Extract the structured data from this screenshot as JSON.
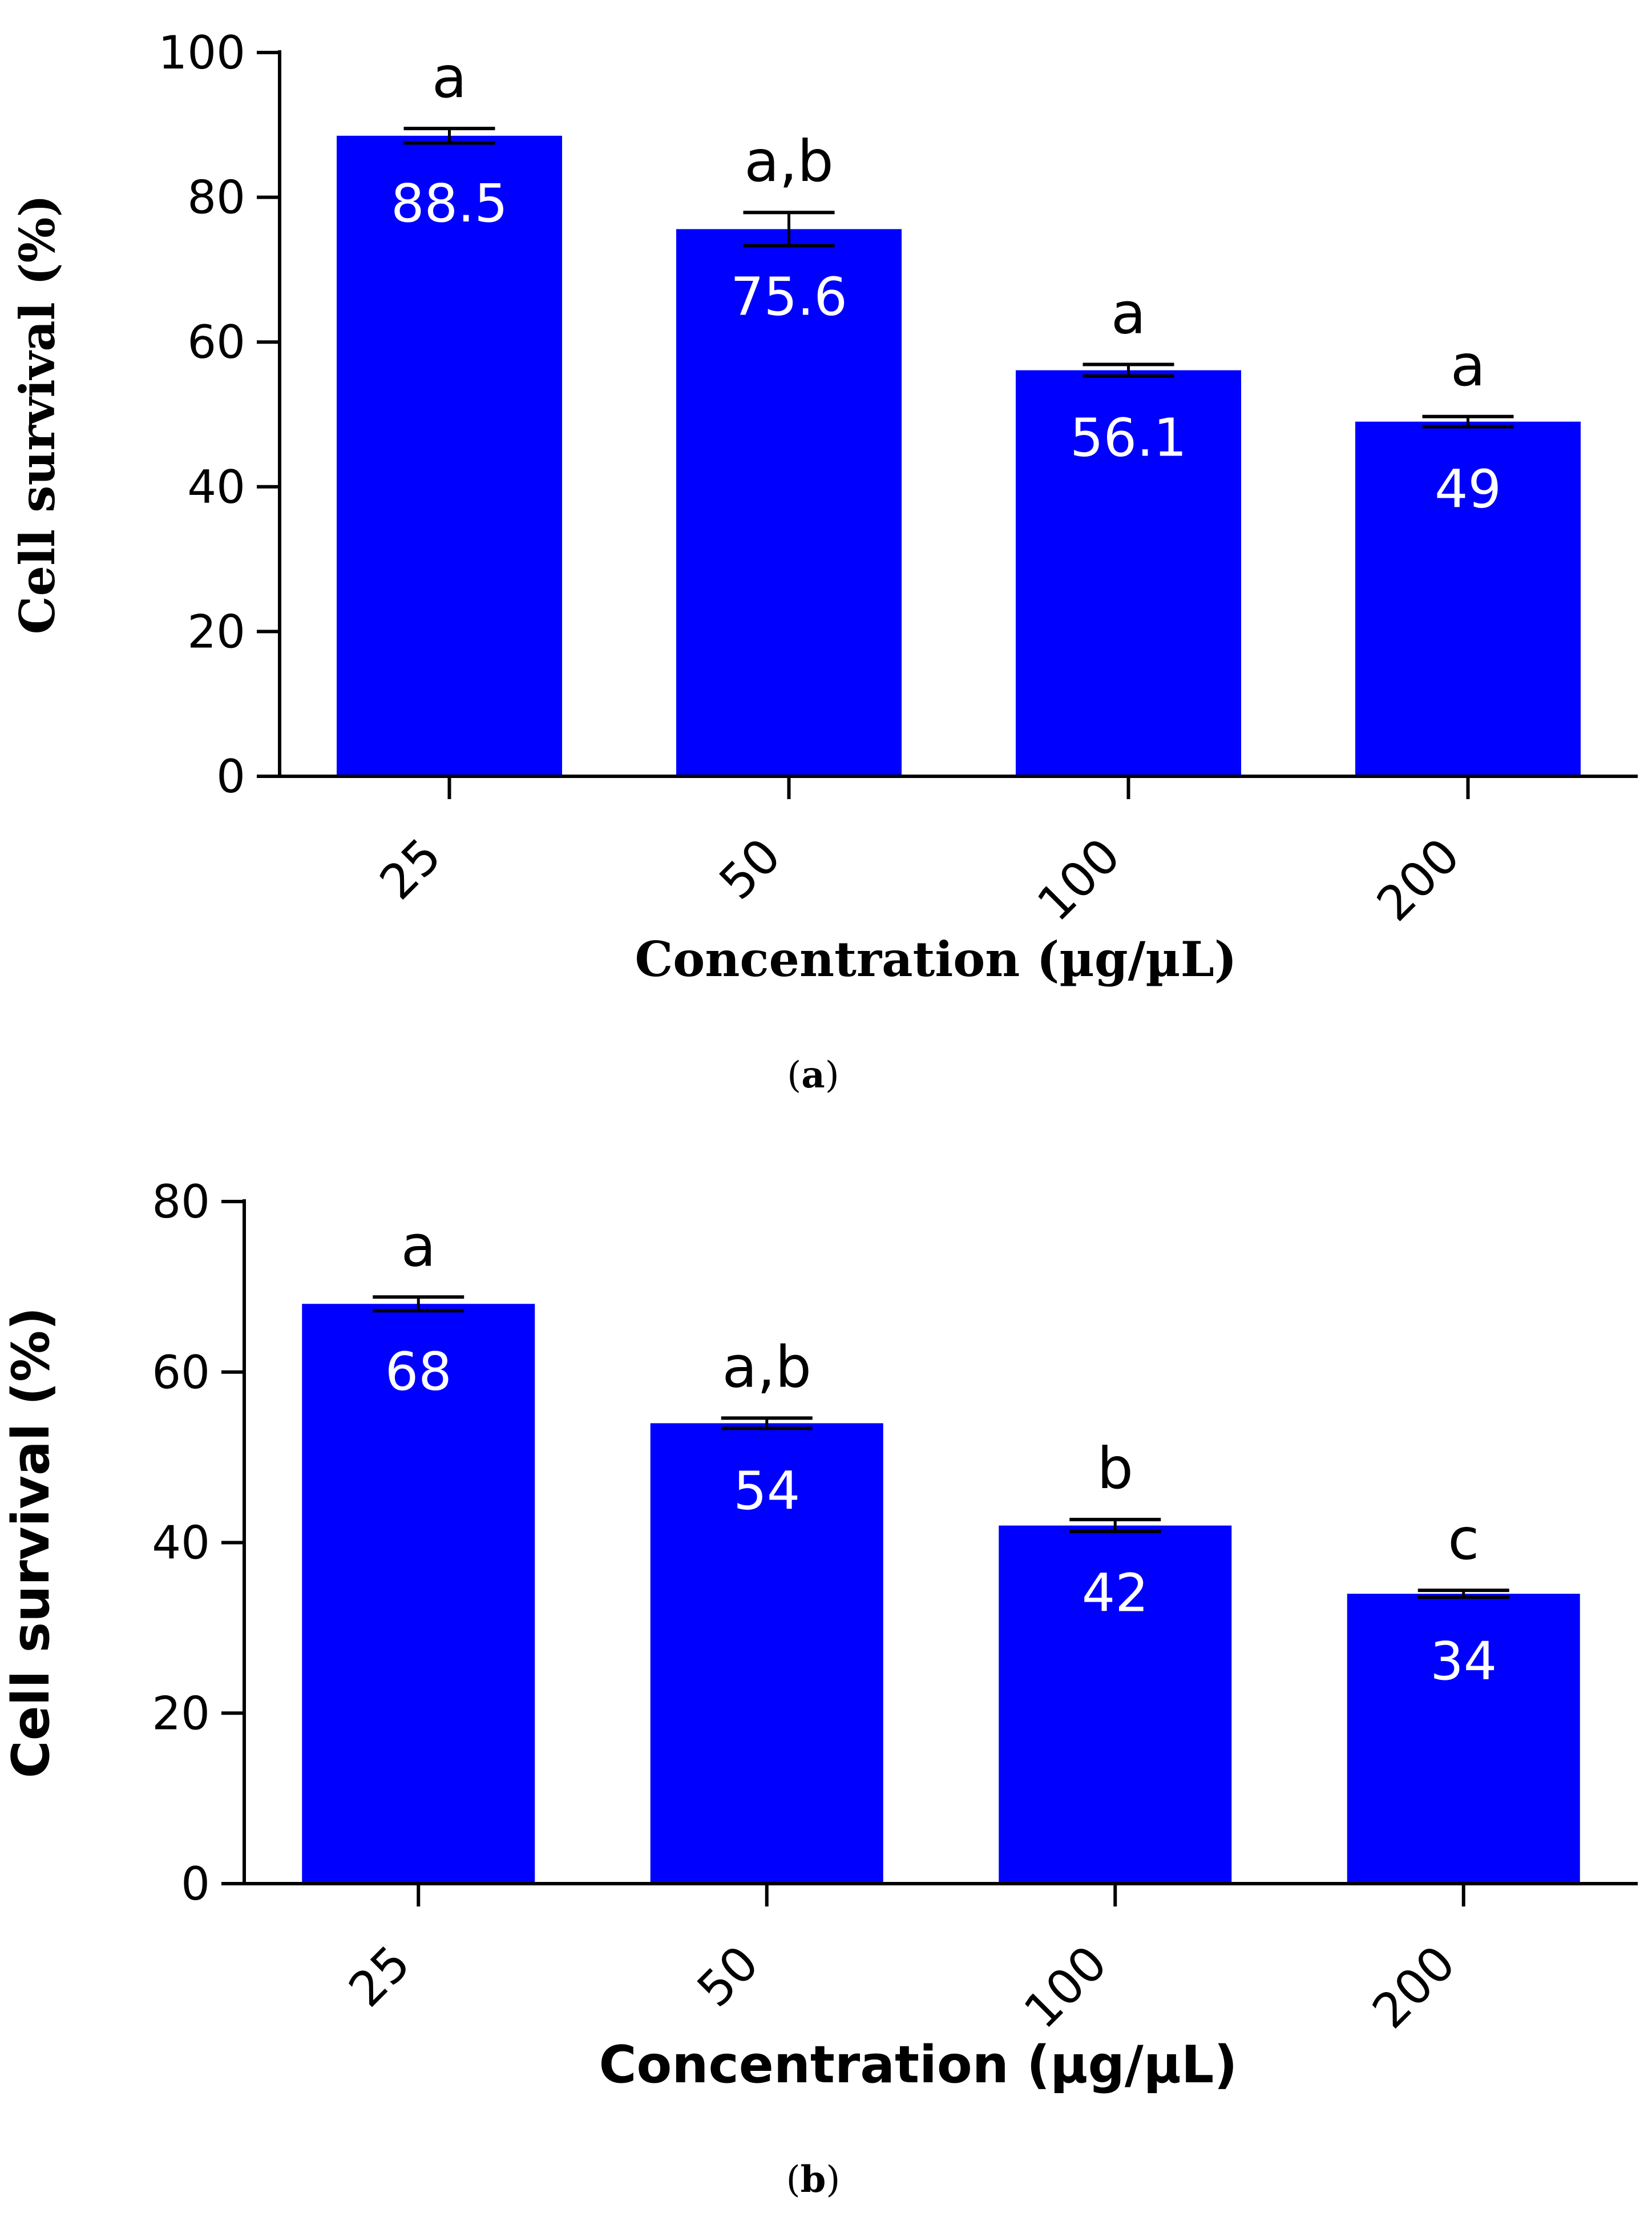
{
  "chart_data": [
    {
      "type": "bar",
      "panel_label": "a",
      "categories": [
        "25",
        "50",
        "100",
        "200"
      ],
      "values": [
        88.5,
        75.6,
        56.1,
        49
      ],
      "value_labels": [
        "88.5",
        "75.6",
        "56.1",
        "49"
      ],
      "error": [
        1.0,
        2.3,
        0.8,
        0.7
      ],
      "significance": [
        "a",
        "a,b",
        "a",
        "a"
      ],
      "xlabel": "Concentration (µg/µL)",
      "ylabel": "Cell survival (%)",
      "ylim": [
        0,
        100
      ],
      "yticks": [
        0,
        20,
        40,
        60,
        80,
        100
      ],
      "bar_color": "#0000ff",
      "grid": false
    },
    {
      "type": "bar",
      "panel_label": "b",
      "categories": [
        "25",
        "50",
        "100",
        "200"
      ],
      "values": [
        68,
        54,
        42,
        34
      ],
      "value_labels": [
        "68",
        "54",
        "42",
        "34"
      ],
      "error": [
        0.8,
        0.6,
        0.7,
        0.4
      ],
      "significance": [
        "a",
        "a,b",
        "b",
        "c"
      ],
      "xlabel": "Concentration (µg/µL)",
      "ylabel": "Cell survival (%)",
      "ylim": [
        0,
        80
      ],
      "yticks": [
        0,
        20,
        40,
        60,
        80
      ],
      "bar_color": "#0000ff",
      "grid": false
    }
  ]
}
